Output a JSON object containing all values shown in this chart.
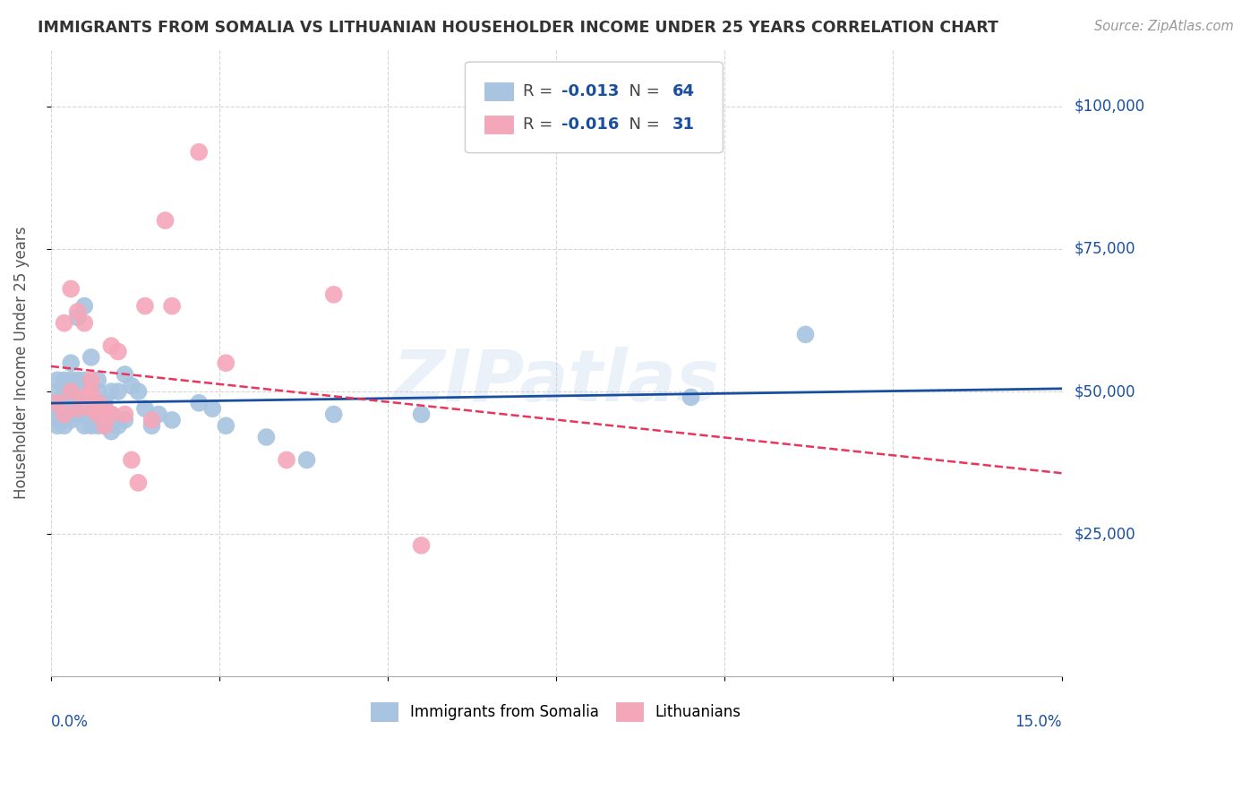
{
  "title": "IMMIGRANTS FROM SOMALIA VS LITHUANIAN HOUSEHOLDER INCOME UNDER 25 YEARS CORRELATION CHART",
  "source": "Source: ZipAtlas.com",
  "ylabel": "Householder Income Under 25 years",
  "ytick_values": [
    25000,
    50000,
    75000,
    100000
  ],
  "ytick_right_labels": [
    "$25,000",
    "$50,000",
    "$75,000",
    "$100,000"
  ],
  "ylim": [
    0,
    110000
  ],
  "xlim": [
    0.0,
    0.15
  ],
  "legend_label1": "Immigrants from Somalia",
  "legend_label2": "Lithuanians",
  "R1": "-0.013",
  "N1": "64",
  "R2": "-0.016",
  "N2": "31",
  "color1": "#a8c4e0",
  "color2": "#f4a7b9",
  "line_color1": "#1a4fa0",
  "line_color2": "#e8365d",
  "watermark": "ZIPatlas",
  "scatter1_x": [
    0.001,
    0.001,
    0.001,
    0.001,
    0.001,
    0.001,
    0.002,
    0.002,
    0.002,
    0.002,
    0.002,
    0.002,
    0.002,
    0.003,
    0.003,
    0.003,
    0.003,
    0.003,
    0.003,
    0.003,
    0.004,
    0.004,
    0.004,
    0.004,
    0.004,
    0.005,
    0.005,
    0.005,
    0.005,
    0.005,
    0.006,
    0.006,
    0.006,
    0.006,
    0.007,
    0.007,
    0.007,
    0.007,
    0.007,
    0.008,
    0.008,
    0.008,
    0.009,
    0.009,
    0.009,
    0.01,
    0.01,
    0.011,
    0.011,
    0.012,
    0.013,
    0.014,
    0.015,
    0.016,
    0.018,
    0.022,
    0.024,
    0.026,
    0.032,
    0.038,
    0.042,
    0.055,
    0.095,
    0.112
  ],
  "scatter1_y": [
    45000,
    47000,
    48000,
    50000,
    52000,
    44000,
    46000,
    47000,
    48000,
    50000,
    44000,
    46000,
    52000,
    46000,
    48000,
    50000,
    52000,
    45000,
    47000,
    55000,
    46000,
    48000,
    50000,
    52000,
    63000,
    44000,
    46000,
    48000,
    52000,
    65000,
    44000,
    46000,
    48000,
    56000,
    44000,
    46000,
    48000,
    50000,
    52000,
    44000,
    46000,
    48000,
    43000,
    46000,
    50000,
    44000,
    50000,
    45000,
    53000,
    51000,
    50000,
    47000,
    44000,
    46000,
    45000,
    48000,
    47000,
    44000,
    42000,
    38000,
    46000,
    46000,
    49000,
    60000
  ],
  "scatter2_x": [
    0.001,
    0.002,
    0.002,
    0.003,
    0.003,
    0.004,
    0.004,
    0.005,
    0.005,
    0.006,
    0.006,
    0.006,
    0.007,
    0.007,
    0.008,
    0.008,
    0.009,
    0.009,
    0.01,
    0.011,
    0.012,
    0.013,
    0.014,
    0.015,
    0.017,
    0.018,
    0.022,
    0.026,
    0.035,
    0.042,
    0.055
  ],
  "scatter2_y": [
    48000,
    46000,
    62000,
    50000,
    68000,
    47000,
    64000,
    49000,
    62000,
    47000,
    50000,
    52000,
    46000,
    48000,
    44000,
    47000,
    46000,
    58000,
    57000,
    46000,
    38000,
    34000,
    65000,
    45000,
    80000,
    65000,
    92000,
    55000,
    38000,
    67000,
    23000
  ]
}
